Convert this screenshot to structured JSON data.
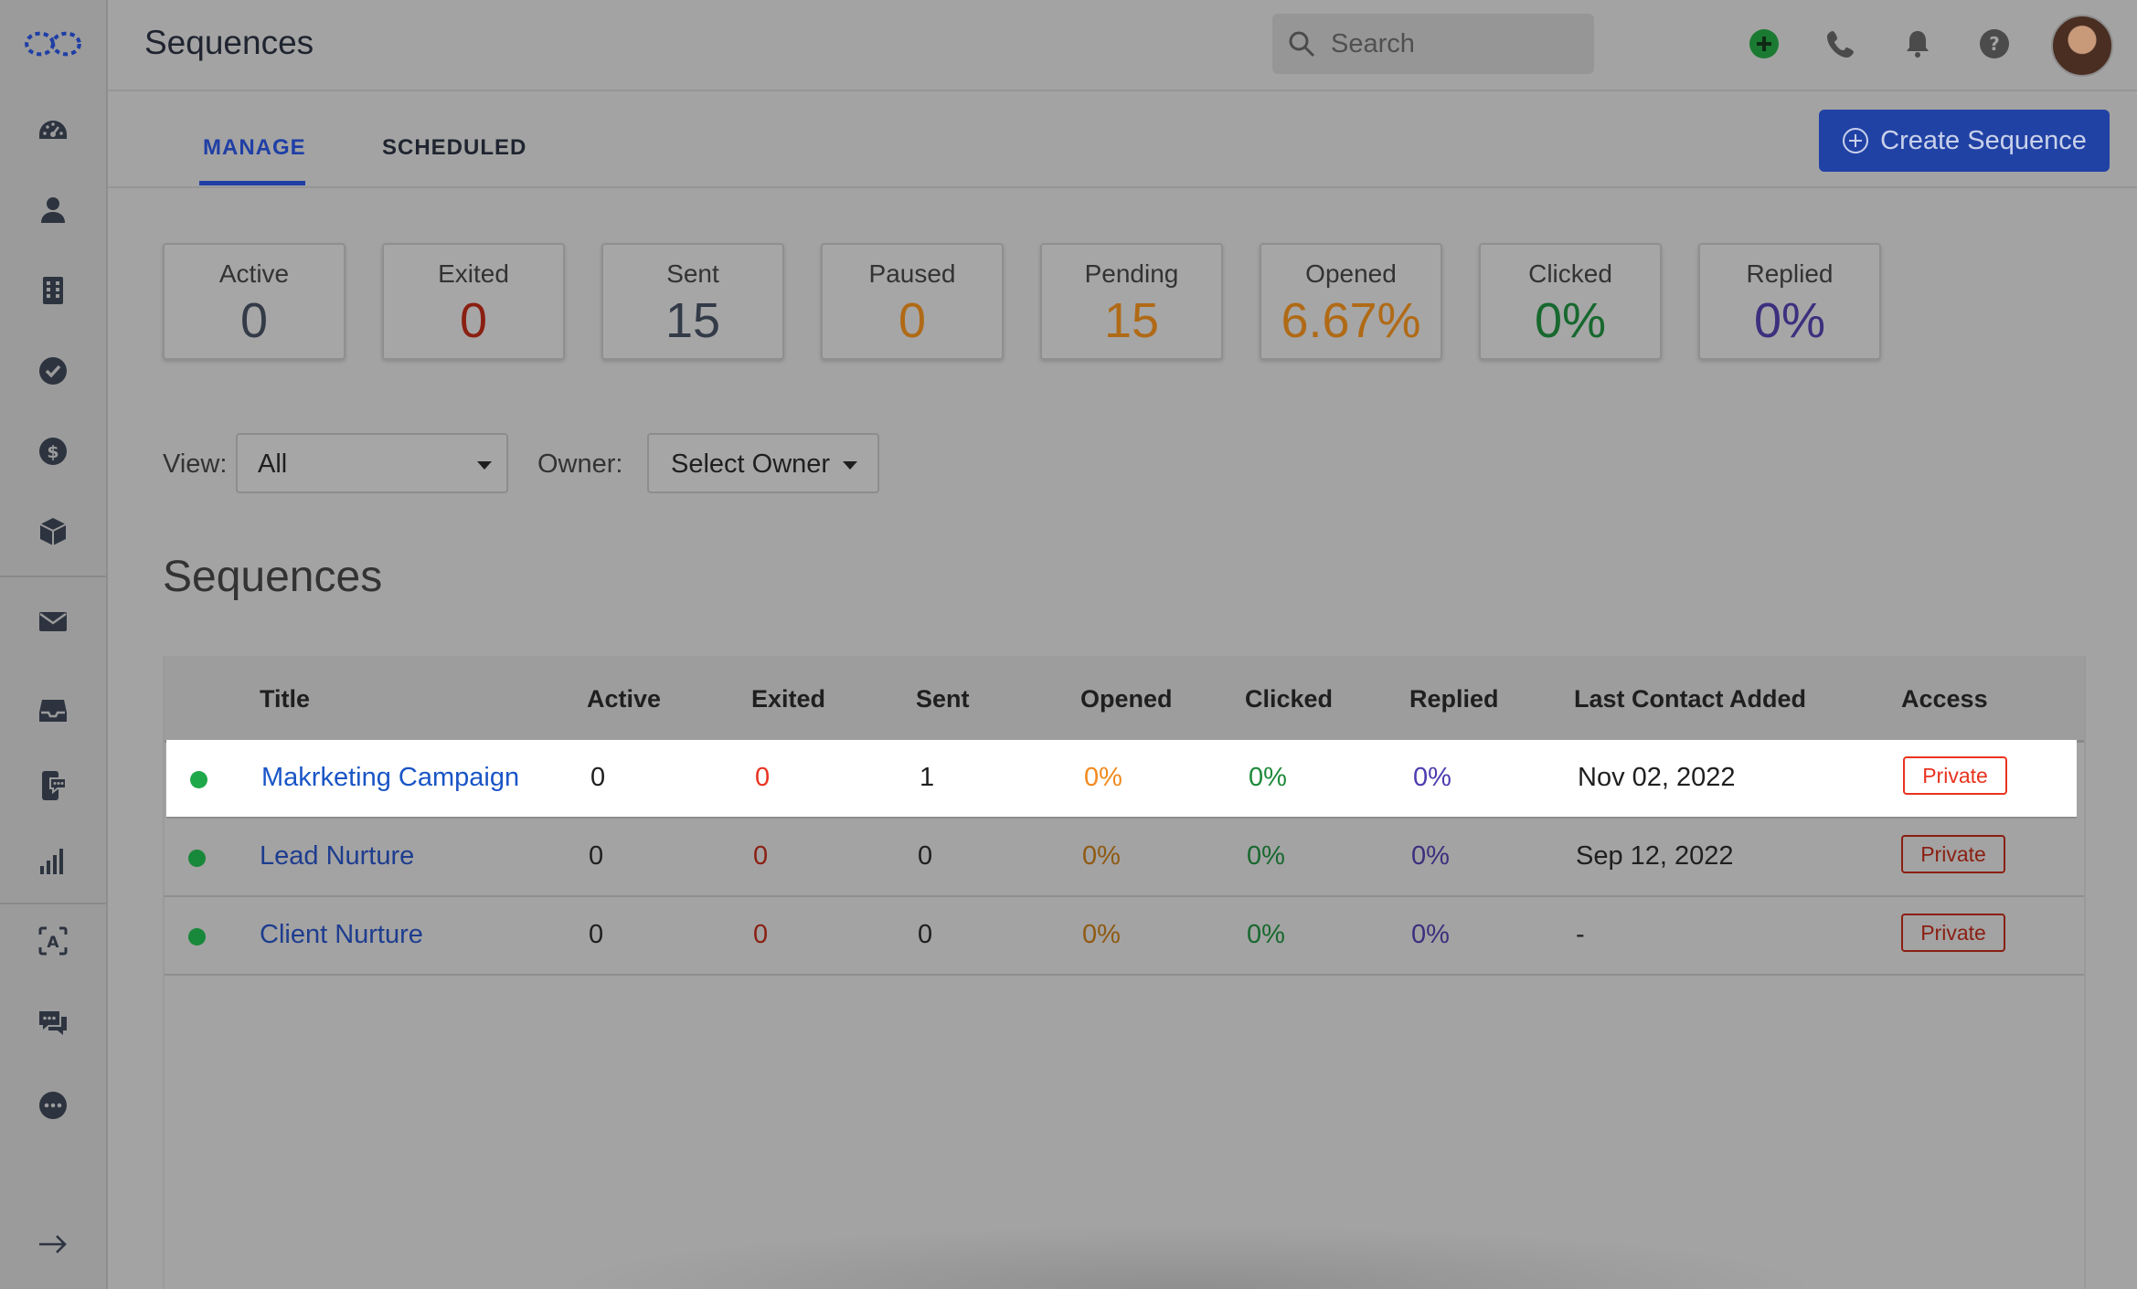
{
  "header": {
    "title": "Sequences",
    "search_placeholder": "Search"
  },
  "tabs": [
    {
      "label": "MANAGE",
      "active": true
    },
    {
      "label": "SCHEDULED",
      "active": false
    }
  ],
  "create_button": {
    "label": "Create Sequence"
  },
  "stats": [
    {
      "label": "Active",
      "value": "0",
      "color": "#333a48"
    },
    {
      "label": "Exited",
      "value": "0",
      "color": "#8a1f12"
    },
    {
      "label": "Sent",
      "value": "15",
      "color": "#333a48"
    },
    {
      "label": "Paused",
      "value": "0",
      "color": "#b06a16"
    },
    {
      "label": "Pending",
      "value": "15",
      "color": "#b06a16"
    },
    {
      "label": "Opened",
      "value": "6.67%",
      "color": "#b06a16"
    },
    {
      "label": "Clicked",
      "value": "0%",
      "color": "#17682e"
    },
    {
      "label": "Replied",
      "value": "0%",
      "color": "#3d2f7e"
    }
  ],
  "filters": {
    "view_label": "View:",
    "view_value": "All",
    "owner_label": "Owner:",
    "owner_value": "Select Owner"
  },
  "section_title": "Sequences",
  "table": {
    "columns": [
      "Title",
      "Active",
      "Exited",
      "Sent",
      "Opened",
      "Clicked",
      "Replied",
      "Last Contact Added",
      "Access"
    ],
    "rows": [
      {
        "title": "Makrketing Campaign",
        "active": "0",
        "exited": "0",
        "sent": "1",
        "opened": "0%",
        "clicked": "0%",
        "replied": "0%",
        "last_contact": "Nov 02, 2022",
        "access": "Private",
        "highlighted": true
      },
      {
        "title": "Lead Nurture",
        "active": "0",
        "exited": "0",
        "sent": "0",
        "opened": "0%",
        "clicked": "0%",
        "replied": "0%",
        "last_contact": "Sep 12, 2022",
        "access": "Private",
        "highlighted": false
      },
      {
        "title": "Client Nurture",
        "active": "0",
        "exited": "0",
        "sent": "0",
        "opened": "0%",
        "clicked": "0%",
        "replied": "0%",
        "last_contact": "-",
        "access": "Private",
        "highlighted": false
      }
    ]
  },
  "sidebar": {
    "icons": [
      "logo-icon",
      "dashboard-icon",
      "contact-icon",
      "company-icon",
      "task-icon",
      "deal-icon",
      "product-icon",
      "mail-icon",
      "inbox-icon",
      "sms-icon",
      "reports-icon",
      "translate-icon",
      "chat-icon",
      "more-icon",
      "expand-icon"
    ]
  },
  "colors": {
    "accent": "#2142a5",
    "status_active": "#18883a",
    "private_badge": "#8a1f12"
  }
}
